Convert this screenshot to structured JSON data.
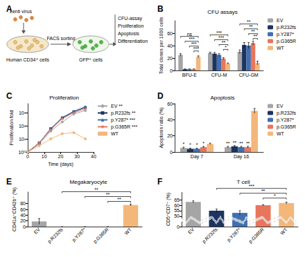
{
  "diagram": {
    "panel": "A",
    "virus": "Lenti virus",
    "step": "FACS sorting",
    "input": "Human CD34⁺ cells",
    "output": "GFP⁺ cells",
    "assays": [
      "CFU-assay",
      "Proliferation",
      "Apoptosis",
      "Differentiation"
    ]
  },
  "chart_data": [
    {
      "panel": "B",
      "type": "bar",
      "title": "CFU assays",
      "y_label": "Total clones per 1000 cells",
      "categories": [
        "BFU-E",
        "CFU-M",
        "CFU-GM"
      ],
      "series": [
        {
          "name": "EV",
          "color": "#a5a5a5",
          "values": [
            25,
            28,
            30
          ],
          "errors": [
            2,
            1.5,
            3
          ]
        },
        {
          "name": "p.R232fs",
          "color": "#1d3461",
          "values": [
            2,
            27,
            41
          ],
          "errors": [
            0.5,
            2,
            4
          ]
        },
        {
          "name": "p.Y287*",
          "color": "#3f6fb0",
          "values": [
            2,
            25,
            40
          ],
          "errors": [
            0.5,
            2,
            5
          ]
        },
        {
          "name": "p.G365R",
          "color": "#e8765c",
          "values": [
            2,
            19,
            44
          ],
          "errors": [
            0.5,
            1.5,
            3
          ]
        },
        {
          "name": "WT",
          "color": "#f3b77a",
          "values": [
            22,
            11,
            12
          ],
          "errors": [
            1.5,
            1,
            3
          ]
        }
      ],
      "ylim": [
        0,
        80
      ],
      "yticks": [
        0,
        20,
        40,
        60
      ],
      "legend": "right",
      "grid": false,
      "annotations": [
        {
          "text": "***",
          "category": "BFU-E",
          "between": [
            "p.G365R",
            "WT"
          ]
        },
        {
          "text": "***",
          "category": "BFU-E",
          "between": [
            "p.Y287*",
            "WT"
          ]
        },
        {
          "text": "***",
          "category": "BFU-E",
          "between": [
            "p.R232fs",
            "WT"
          ]
        },
        {
          "text": "ns",
          "category": "BFU-E",
          "between": [
            "EV",
            "WT"
          ]
        },
        {
          "text": "*",
          "category": "CFU-M",
          "between": [
            "p.G365R",
            "WT"
          ]
        },
        {
          "text": "**",
          "category": "CFU-M",
          "between": [
            "p.Y287*",
            "WT"
          ]
        },
        {
          "text": "***",
          "category": "CFU-M",
          "between": [
            "p.R232fs",
            "WT"
          ]
        },
        {
          "text": "***",
          "category": "CFU-M",
          "between": [
            "EV",
            "WT"
          ]
        },
        {
          "text": "**",
          "category": "CFU-GM",
          "between": [
            "p.G365R",
            "WT"
          ]
        },
        {
          "text": "**",
          "category": "CFU-GM",
          "between": [
            "p.Y287*",
            "WT"
          ]
        },
        {
          "text": "**",
          "category": "CFU-GM",
          "between": [
            "p.R232fs",
            "WT"
          ]
        },
        {
          "text": "**",
          "category": "CFU-GM",
          "between": [
            "EV",
            "WT"
          ]
        }
      ]
    },
    {
      "panel": "C",
      "type": "line",
      "title": "Proliferation",
      "x_label": "Time (days)",
      "y_label": "Proliferation fold",
      "x": [
        0,
        7,
        14,
        21,
        28,
        35
      ],
      "series": [
        {
          "name": "EV **",
          "color": "#a5a5a5",
          "marker": "circle",
          "values": [
            1,
            4,
            40,
            200,
            800,
            1500
          ]
        },
        {
          "name": "p.R232fs **",
          "color": "#1d3461",
          "marker": "square",
          "values": [
            1,
            5,
            60,
            400,
            1200,
            2500
          ]
        },
        {
          "name": "p.Y287* ***",
          "color": "#3f6fb0",
          "marker": "triangle",
          "values": [
            1,
            5,
            60,
            450,
            1300,
            3000
          ]
        },
        {
          "name": "p.G365R ***",
          "color": "#e8765c",
          "marker": "diamond",
          "values": [
            1,
            5,
            50,
            350,
            1000,
            2000
          ]
        },
        {
          "name": "WT",
          "color": "#f3b77a",
          "marker": "circle",
          "values": [
            1,
            3,
            10,
            25,
            30,
            10
          ]
        }
      ],
      "xlim": [
        0,
        40
      ],
      "xticks": [
        0,
        10,
        20,
        30,
        40
      ],
      "log": "y",
      "ylim": [
        1,
        5000
      ],
      "yticks": [
        {
          "value": 1,
          "label": "10⁰"
        },
        {
          "value": 10,
          "label": "10¹"
        },
        {
          "value": 100,
          "label": "10²"
        },
        {
          "value": 1000,
          "label": "10³"
        }
      ],
      "legend": "right",
      "grid": false
    },
    {
      "panel": "D",
      "type": "bar",
      "title": "Apoptosis",
      "y_label": "Apoptosis ratio (%)",
      "categories": [
        "Day 7",
        "Day 16"
      ],
      "series": [
        {
          "name": "EV",
          "color": "#a5a5a5",
          "values": [
            5,
            6
          ],
          "errors": [
            1,
            1
          ]
        },
        {
          "name": "p.R232fs",
          "color": "#1d3461",
          "values": [
            4,
            7
          ],
          "errors": [
            0.8,
            1
          ]
        },
        {
          "name": "p.Y287*",
          "color": "#3f6fb0",
          "values": [
            4,
            6
          ],
          "errors": [
            0.8,
            1
          ]
        },
        {
          "name": "p.G365R",
          "color": "#e8765c",
          "values": [
            6,
            6
          ],
          "errors": [
            1,
            1
          ]
        },
        {
          "name": "WT",
          "color": "#f3b77a",
          "values": [
            10,
            51
          ],
          "errors": [
            1,
            3
          ]
        }
      ],
      "ylim": [
        0,
        60
      ],
      "yticks": [
        0,
        20,
        40,
        60
      ],
      "legend": "right",
      "grid": false,
      "annotations": [
        {
          "text": "*",
          "category": "Day 7",
          "series": "EV"
        },
        {
          "text": "*",
          "category": "Day 7",
          "series": "p.R232fs"
        },
        {
          "text": "*",
          "category": "Day 7",
          "series": "p.Y287*"
        },
        {
          "text": "*",
          "category": "Day 7",
          "series": "p.G365R"
        },
        {
          "text": "**",
          "category": "Day 16",
          "series": "EV"
        },
        {
          "text": "**",
          "category": "Day 16",
          "series": "p.R232fs"
        },
        {
          "text": "**",
          "category": "Day 16",
          "series": "p.Y287*"
        },
        {
          "text": "**",
          "category": "Day 16",
          "series": "p.G365R"
        }
      ]
    },
    {
      "panel": "E",
      "type": "bar",
      "title": "Megakaryocyte",
      "y_label": "CD41a⁺CD42b⁺ (%)",
      "categories": [
        "EV",
        "p.R232fs",
        "p.Y287*",
        "p.G365R",
        "WT"
      ],
      "values": [
        18,
        0,
        0,
        0,
        75
      ],
      "errors": [
        10,
        0,
        0,
        0,
        3
      ],
      "colors": [
        "#a5a5a5",
        "#1d3461",
        "#3f6fb0",
        "#e8765c",
        "#f3b77a"
      ],
      "ylim": [
        0,
        120
      ],
      "yticks": [
        0,
        20,
        40,
        60,
        80
      ],
      "grid": false,
      "annotations": [
        {
          "text": "**",
          "between": [
            "p.G365R",
            "WT"
          ]
        },
        {
          "text": "**",
          "between": [
            "p.Y287*",
            "WT"
          ]
        },
        {
          "text": "**",
          "between": [
            "p.R232fs",
            "WT"
          ]
        }
      ]
    },
    {
      "panel": "F",
      "type": "bar",
      "title": "T cell",
      "y_label": "CD5⁺CD7⁺ (%)",
      "categories": [
        "EV",
        "p.R232fs",
        "p.Y287*",
        "p.G365R",
        "WT"
      ],
      "values": [
        63,
        55,
        53,
        60,
        62
      ],
      "errors": [
        1,
        1.5,
        2,
        0.5,
        0.8
      ],
      "colors": [
        "#a5a5a5",
        "#1d3461",
        "#3f6fb0",
        "#e8765c",
        "#f3b77a"
      ],
      "ylim": [
        0,
        72
      ],
      "yticks": [
        0,
        50,
        55,
        60,
        65
      ],
      "ybreak": [
        5,
        48
      ],
      "grid": false,
      "annotations": [
        {
          "text": "*",
          "between": [
            "p.G365R",
            "WT"
          ]
        },
        {
          "text": "**",
          "between": [
            "p.Y287*",
            "WT"
          ]
        },
        {
          "text": "***",
          "between": [
            "p.R232fs",
            "WT"
          ]
        }
      ]
    }
  ]
}
